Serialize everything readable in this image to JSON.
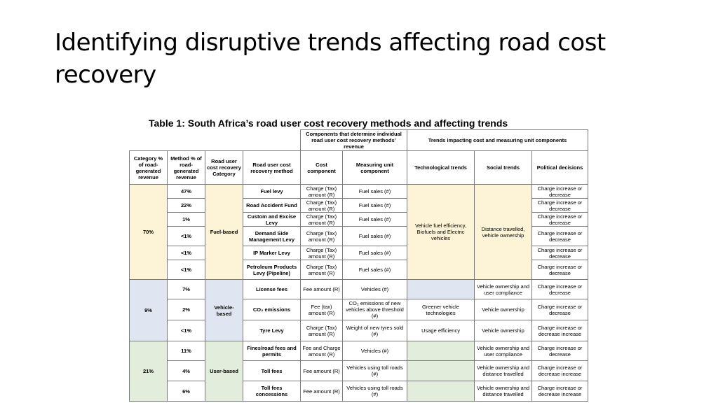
{
  "slide": {
    "title": "Identifying disruptive trends affecting road cost recovery"
  },
  "table": {
    "caption": "Table 1: South Africa’s road user cost recovery methods and affecting trends",
    "headers": {
      "components_group": "Components that determine individual road user cost recovery methods’ revenue",
      "trends_group": "Trends impacting cost and measuring unit components",
      "category": "Category % of road-generated revenue",
      "method_pct": "Method % of road-generated revenue",
      "road_user_cost_category": "Road user cost recovery Category",
      "road_user_cost_method": "Road user cost recovery method",
      "cost_component": "Cost component",
      "measuring_unit": "Measuring unit component",
      "technological": "Technological trends",
      "social": "Social trends",
      "political": "Political decisions"
    },
    "groups": [
      {
        "category_pct": "70%",
        "category": "Fuel-based",
        "technological": "Vehicle fuel efficiency, Biofuels and Electric vehicles",
        "social": "Distance travelled, vehicle ownership",
        "rows": [
          {
            "pct": "47%",
            "method": "Fuel levy",
            "cost": "Charge (Tax) amount (R)",
            "unit": "Fuel sales (#)",
            "political": "Charge increase or decrease"
          },
          {
            "pct": "22%",
            "method": "Road Accident Fund",
            "cost": "Charge (Tax) amount (R)",
            "unit": "Fuel sales (#)",
            "political": "Charge increase or decrease"
          },
          {
            "pct": "1%",
            "method": "Custom and Excise Levy",
            "cost": "Charge (Tax) amount (R)",
            "unit": "Fuel sales (#)",
            "political": "Charge increase or decrease"
          },
          {
            "pct": "<1%",
            "method": "Demand Side Management Levy",
            "cost": "Charge (Tax) amount (R)",
            "unit": "Fuel sales (#)",
            "political": "Charge increase or decrease"
          },
          {
            "pct": "<1%",
            "method": "IP Marker Levy",
            "cost": "Charge (Tax) amount (R)",
            "unit": "Fuel sales (#)",
            "political": "Charge increase or decrease"
          },
          {
            "pct": "<1%",
            "method": "Petroleum Products Levy (Pipeline)",
            "cost": "Charge (Tax) amount (R)",
            "unit": "Fuel sales (#)",
            "political": "Charge increase or decrease"
          }
        ]
      },
      {
        "category_pct": "9%",
        "category": "Vehicle-based",
        "rows": [
          {
            "pct": "7%",
            "method": "License fees",
            "cost": "Fee amount (R)",
            "unit": "Vehicles (#)",
            "technological": "",
            "social": "Vehicle ownership and user compliance",
            "political": "Charge increase or decrease"
          },
          {
            "pct": "2%",
            "method": "CO₂ emissions",
            "cost": "Fee (tax) amount (R)",
            "unit": "CO₂ emissions of new vehicles above threshold (#)",
            "technological": "Greener vehicle technologies",
            "social": "Vehicle ownership",
            "political": "Charge increase or decrease"
          },
          {
            "pct": "<1%",
            "method": "Tyre Levy",
            "cost": "Charge (Tax) amount (R)",
            "unit": "Weight of new tyres sold (#)",
            "technological": "Usage efficiency",
            "social": "Vehicle ownership",
            "political": "Charge increase or decrease increase"
          }
        ]
      },
      {
        "category_pct": "21%",
        "category": "User-based",
        "rows": [
          {
            "pct": "11%",
            "method": "Fines/road fees and permits",
            "cost": "Fee and Charge amount (R)",
            "unit": "Vehicles (#)",
            "technological": "",
            "social": "Vehicle ownership and user compliance",
            "political": "Charge increase or decrease"
          },
          {
            "pct": "4%",
            "method": "Toll fees",
            "cost": "Fee amount (R)",
            "unit": "Vehicles using toll roads (#)",
            "technological": "",
            "social": "Vehicle ownership and distance travelled",
            "political": "Charge increase or decrease increase"
          },
          {
            "pct": "6%",
            "method": "Toll fees concessions",
            "cost": "Fee amount (R)",
            "unit": "Vehicles using toll roads (#)",
            "technological": "",
            "social": "Vehicle ownership and distance travelled",
            "political": "Charge increase or decrease increase"
          }
        ]
      }
    ]
  }
}
